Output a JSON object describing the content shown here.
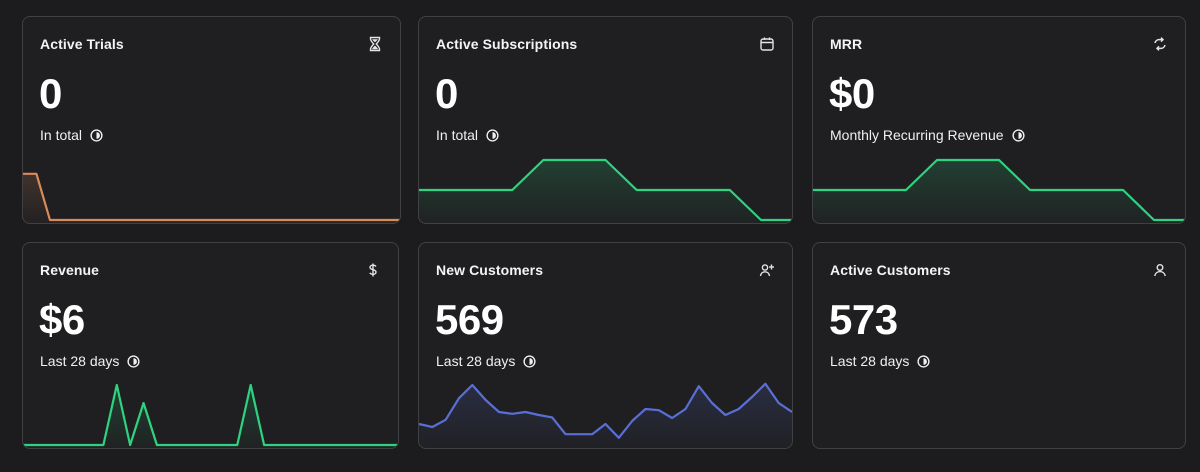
{
  "colors": {
    "background": "#1c1c1e",
    "card": "#1f1f21",
    "border": "#414145",
    "orange": "#d98a5b",
    "green": "#2fd37f",
    "blue": "#5a6fd6"
  },
  "cards": [
    {
      "title": "Active Trials",
      "value": "0",
      "subtitle": "In total",
      "icon": "hourglass-icon",
      "series_color": "orange",
      "series": [
        0.77,
        0.77,
        0,
        0,
        0,
        0,
        0,
        0,
        0,
        0,
        0,
        0,
        0,
        0,
        0,
        0,
        0,
        0,
        0,
        0,
        0,
        0,
        0,
        0,
        0,
        0,
        0,
        0,
        0
      ]
    },
    {
      "title": "Active Subscriptions",
      "value": "0",
      "subtitle": "In total",
      "icon": "calendar-icon",
      "series_color": "green",
      "series": [
        0.5,
        0.5,
        0.5,
        0.5,
        1,
        1,
        1,
        0.5,
        0.5,
        0.5,
        0.5,
        0,
        0
      ]
    },
    {
      "title": "MRR",
      "value": "$0",
      "subtitle": "Monthly Recurring Revenue",
      "icon": "refresh-icon",
      "series_color": "green",
      "series": [
        0.5,
        0.5,
        0.5,
        0.5,
        1,
        1,
        1,
        0.5,
        0.5,
        0.5,
        0.5,
        0,
        0
      ]
    },
    {
      "title": "Revenue",
      "value": "$6",
      "subtitle": "Last 28 days",
      "icon": "dollar-icon",
      "series_color": "green",
      "series": [
        0,
        0,
        0,
        0,
        0,
        0,
        0,
        1,
        0,
        0.7,
        0,
        0,
        0,
        0,
        0,
        0,
        0,
        1,
        0,
        0,
        0,
        0,
        0,
        0,
        0,
        0,
        0,
        0,
        0
      ]
    },
    {
      "title": "New Customers",
      "value": "569",
      "subtitle": "Last 28 days",
      "icon": "add-user-icon",
      "series_color": "blue",
      "series": [
        0.35,
        0.3,
        0.42,
        0.78,
        1,
        0.75,
        0.55,
        0.52,
        0.55,
        0.5,
        0.46,
        0.18,
        0.18,
        0.18,
        0.35,
        0.12,
        0.4,
        0.6,
        0.58,
        0.45,
        0.6,
        0.98,
        0.7,
        0.5,
        0.6,
        0.8,
        1.02,
        0.7,
        0.55
      ]
    },
    {
      "title": "Active Customers",
      "value": "573",
      "subtitle": "Last 28 days",
      "icon": "user-icon",
      "series_color": "none",
      "series": []
    }
  ]
}
